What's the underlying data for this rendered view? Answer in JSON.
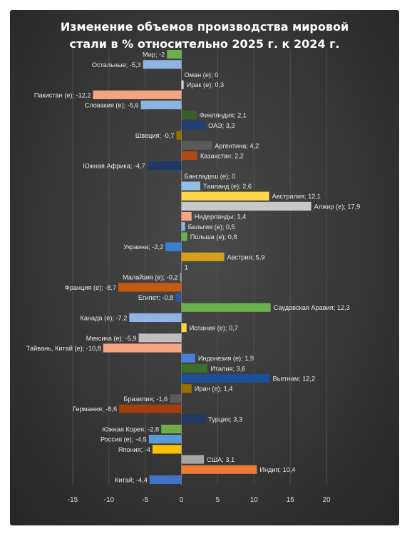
{
  "chart_data": {
    "type": "bar",
    "orientation": "horizontal",
    "title_lines": [
      "Изменение объемов производства мировой",
      "стали в % относительно 2025 г. к 2024 г."
    ],
    "xlim": [
      -15,
      20
    ],
    "x_ticks": [
      "-15",
      "-10",
      "-5",
      "0",
      "5",
      "10",
      "15",
      "20"
    ],
    "grid": "vertical major gridlines",
    "legend": "none",
    "bars": [
      {
        "label": "Мир; -2",
        "value": -2,
        "color": "#6ab04c"
      },
      {
        "label": "Остальные; -5,3",
        "value": -5.3,
        "color": "#8fb4e3"
      },
      {
        "label": "Оман (е); 0",
        "value": 0,
        "color": "#a5a5a5"
      },
      {
        "label": "Ирак (е); 0,3",
        "value": 0.3,
        "color": "#d9d9d9"
      },
      {
        "label": "Пакистан (е); -12,2",
        "value": -12.2,
        "color": "#f4a582"
      },
      {
        "label": "Словакия (е); -5,6",
        "value": -5.6,
        "color": "#8fb4e3"
      },
      {
        "label": "Финляндия; 2,1",
        "value": 2.1,
        "color": "#3a5e2a"
      },
      {
        "label": "ОАЭ; 3,3",
        "value": 3.3,
        "color": "#1f3f73"
      },
      {
        "label": "Швеция; -0,7",
        "value": -0.7,
        "color": "#9a6f00"
      },
      {
        "label": "Аргентина; 4,2",
        "value": 4.2,
        "color": "#5a5a5a"
      },
      {
        "label": "Казахстан; 2,2",
        "value": 2.2,
        "color": "#b04a17"
      },
      {
        "label": "Южная Африка; -4,7",
        "value": -4.7,
        "color": "#1f3864"
      },
      {
        "label": "Бангладеш (е); 0",
        "value": 0,
        "color": "#a5a5a5"
      },
      {
        "label": "Таиланд (е); 2,6",
        "value": 2.6,
        "color": "#8fc1e8"
      },
      {
        "label": "Австралия; 12,1",
        "value": 12.1,
        "color": "#ffd54a"
      },
      {
        "label": "Алжир (е); 17,9",
        "value": 17.9,
        "color": "#c8c8c8"
      },
      {
        "label": "Нидерланды; 1,4",
        "value": 1.4,
        "color": "#f4a582"
      },
      {
        "label": "Бельгия (е); 0,5",
        "value": 0.5,
        "color": "#8fb4e3"
      },
      {
        "label": "Польша (е); 0,8",
        "value": 0.8,
        "color": "#6ab04c"
      },
      {
        "label": "Украина; -2,2",
        "value": -2.2,
        "color": "#3a7fd0"
      },
      {
        "label": "Австрия; 5,9",
        "value": 5.9,
        "color": "#d4a017"
      },
      {
        "label": "1",
        "value": 0,
        "color": "#a5a5a5"
      },
      {
        "label": "Малайзия (е); -0,2",
        "value": -0.2,
        "color": "#9a9a9a"
      },
      {
        "label": "Франция (е); -8,7",
        "value": -8.7,
        "color": "#c65a11"
      },
      {
        "label": "Египет; -0,8",
        "value": -0.8,
        "color": "#2f5597"
      },
      {
        "label": "Саудовская Аравия; 12,3",
        "value": 12.3,
        "color": "#6ab04c"
      },
      {
        "label": "Канада (е); -7,2",
        "value": -7.2,
        "color": "#8fb4e3"
      },
      {
        "label": "Испания (е); 0,7",
        "value": 0.7,
        "color": "#ffd54a"
      },
      {
        "label": "Мексика (е); -5,9",
        "value": -5.9,
        "color": "#bfbfbf"
      },
      {
        "label": "Тайвань, Китай (е); -10,8",
        "value": -10.8,
        "color": "#f4a582"
      },
      {
        "label": "Индонезия (е); 1,9",
        "value": 1.9,
        "color": "#4a7fd4"
      },
      {
        "label": "Италия; 3,6",
        "value": 3.6,
        "color": "#3a6e2a"
      },
      {
        "label": "Вьетнам; 12,2",
        "value": 12.2,
        "color": "#1f4e99"
      },
      {
        "label": "Иран (е); 1,4",
        "value": 1.4,
        "color": "#9a6f00"
      },
      {
        "label": "Бразилия; -1,6",
        "value": -1.6,
        "color": "#595959"
      },
      {
        "label": "Германия; -8,6",
        "value": -8.6,
        "color": "#a0400f"
      },
      {
        "label": "Турция; 3,3",
        "value": 3.3,
        "color": "#1f3864"
      },
      {
        "label": "Южная Корея; -2,8",
        "value": -2.8,
        "color": "#70ad47"
      },
      {
        "label": "Россия (е); -4,5",
        "value": -4.5,
        "color": "#5b9bd5"
      },
      {
        "label": "Япония; -4",
        "value": -4,
        "color": "#ffc000"
      },
      {
        "label": "США; 3,1",
        "value": 3.1,
        "color": "#a5a5a5"
      },
      {
        "label": "Индия; 10,4",
        "value": 10.4,
        "color": "#ed7d31"
      },
      {
        "label": "Китай; -4,4",
        "value": -4.4,
        "color": "#4472c4"
      }
    ]
  }
}
